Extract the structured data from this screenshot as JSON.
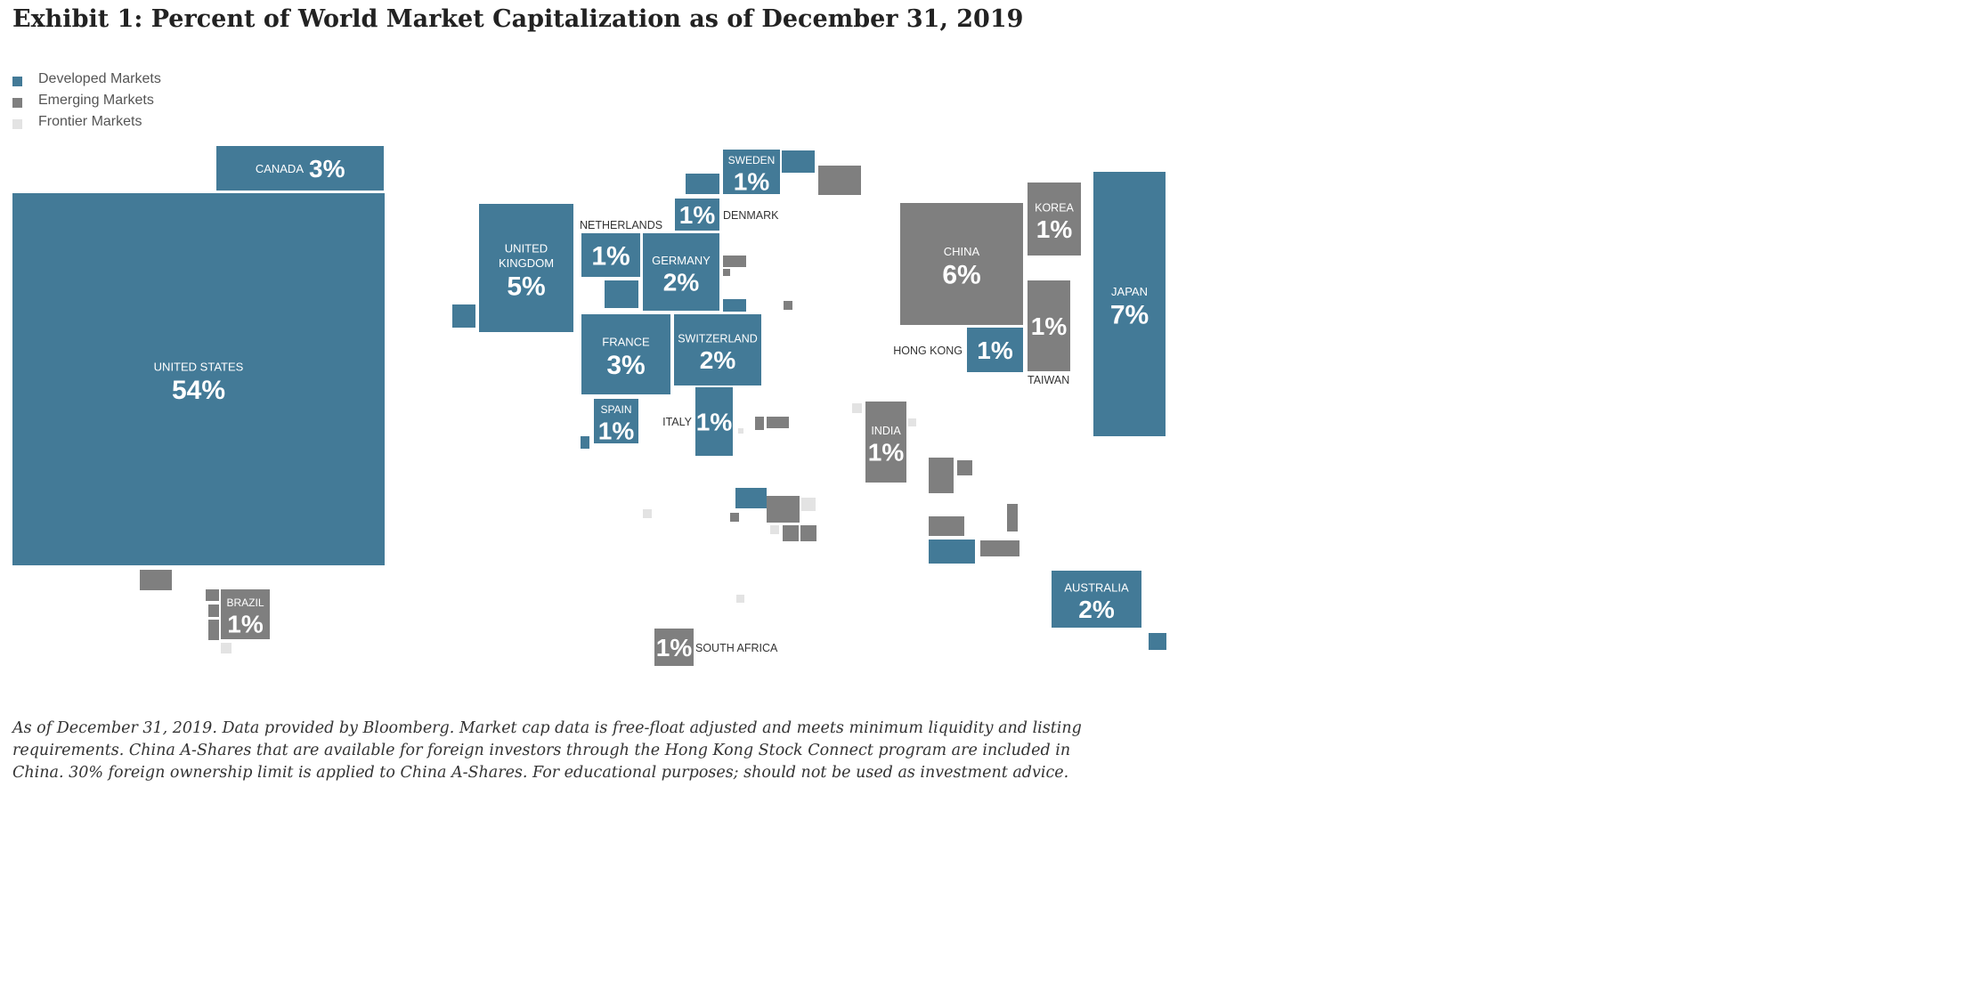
{
  "title": "Exhibit 1: Percent of World Market Capitalization as of December 31, 2019",
  "colors": {
    "developed": "#437a97",
    "emerging": "#7f7f7f",
    "frontier": "#e3e3e3"
  },
  "legend": [
    {
      "label": "Developed Markets",
      "type": "developed"
    },
    {
      "label": "Emerging Markets",
      "type": "emerging"
    },
    {
      "label": "Frontier Markets",
      "type": "frontier"
    }
  ],
  "chart_data": {
    "type": "cartogram",
    "title": "Exhibit 1: Percent of World Market Capitalization as of December 31, 2019",
    "unit": "%",
    "markets": [
      {
        "name": "UNITED STATES",
        "label": "UNITED STATES",
        "value": "54%",
        "type": "developed"
      },
      {
        "name": "CANADA",
        "label": "CANADA",
        "value": "3%",
        "type": "developed"
      },
      {
        "name": "UNITED KINGDOM",
        "label": "UNITED KINGDOM",
        "value": "5%",
        "type": "developed"
      },
      {
        "name": "NETHERLANDS",
        "label": "NETHERLANDS",
        "value": "1%",
        "type": "developed"
      },
      {
        "name": "GERMANY",
        "label": "GERMANY",
        "value": "2%",
        "type": "developed"
      },
      {
        "name": "FRANCE",
        "label": "FRANCE",
        "value": "3%",
        "type": "developed"
      },
      {
        "name": "SWITZERLAND",
        "label": "SWITZERLAND",
        "value": "2%",
        "type": "developed"
      },
      {
        "name": "SPAIN",
        "label": "SPAIN",
        "value": "1%",
        "type": "developed"
      },
      {
        "name": "ITALY",
        "label": "ITALY",
        "value": "1%",
        "type": "developed"
      },
      {
        "name": "SWEDEN",
        "label": "SWEDEN",
        "value": "1%",
        "type": "developed"
      },
      {
        "name": "DENMARK",
        "label": "DENMARK",
        "value": "1%",
        "type": "developed"
      },
      {
        "name": "CHINA",
        "label": "CHINA",
        "value": "6%",
        "type": "emerging"
      },
      {
        "name": "KOREA",
        "label": "KOREA",
        "value": "1%",
        "type": "emerging"
      },
      {
        "name": "TAIWAN",
        "label": "TAIWAN",
        "value": "1%",
        "type": "emerging"
      },
      {
        "name": "HONG KONG",
        "label": "HONG KONG",
        "value": "1%",
        "type": "developed"
      },
      {
        "name": "JAPAN",
        "label": "JAPAN",
        "value": "7%",
        "type": "developed"
      },
      {
        "name": "INDIA",
        "label": "INDIA",
        "value": "1%",
        "type": "emerging"
      },
      {
        "name": "AUSTRALIA",
        "label": "AUSTRALIA",
        "value": "2%",
        "type": "developed"
      },
      {
        "name": "BRAZIL",
        "label": "BRAZIL",
        "value": "1%",
        "type": "emerging"
      },
      {
        "name": "SOUTH AFRICA",
        "label": "SOUTH AFRICA",
        "value": "1%",
        "type": "emerging"
      }
    ],
    "unlabeled_markets": [
      {
        "type": "developed"
      },
      {
        "type": "developed"
      },
      {
        "type": "developed"
      },
      {
        "type": "developed"
      },
      {
        "type": "developed"
      },
      {
        "type": "developed"
      },
      {
        "type": "developed"
      },
      {
        "type": "developed"
      },
      {
        "type": "developed"
      },
      {
        "type": "emerging"
      },
      {
        "type": "emerging"
      },
      {
        "type": "emerging"
      },
      {
        "type": "emerging"
      },
      {
        "type": "emerging"
      },
      {
        "type": "emerging"
      },
      {
        "type": "emerging"
      },
      {
        "type": "emerging"
      },
      {
        "type": "emerging"
      },
      {
        "type": "emerging"
      },
      {
        "type": "emerging"
      },
      {
        "type": "emerging"
      },
      {
        "type": "emerging"
      },
      {
        "type": "emerging"
      },
      {
        "type": "emerging"
      },
      {
        "type": "emerging"
      },
      {
        "type": "emerging"
      },
      {
        "type": "emerging"
      },
      {
        "type": "emerging"
      },
      {
        "type": "frontier"
      },
      {
        "type": "frontier"
      },
      {
        "type": "frontier"
      },
      {
        "type": "frontier"
      },
      {
        "type": "frontier"
      },
      {
        "type": "frontier"
      },
      {
        "type": "frontier"
      },
      {
        "type": "frontier"
      },
      {
        "type": "frontier"
      }
    ]
  },
  "footnote": "As of December 31, 2019. Data provided by Bloomberg. Market cap data is free-float adjusted and meets minimum liquidity and listing requirements. China A-Shares that are available for foreign investors through the Hong Kong Stock Connect program are included in China. 30% foreign ownership limit is applied to China A-Shares. For educational purposes; should not be used as investment advice."
}
